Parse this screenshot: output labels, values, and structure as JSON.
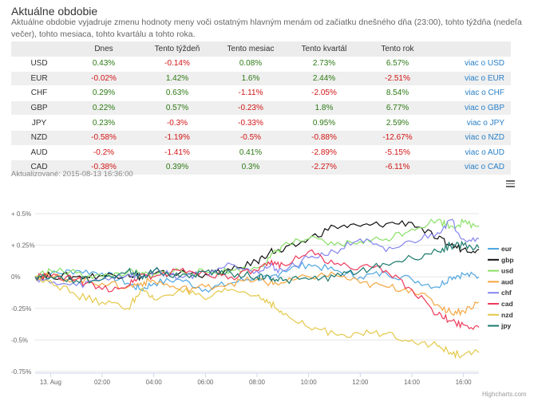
{
  "header": {
    "title": "Aktuálne obdobie",
    "description": "Aktuálne obdobie vyjadruje zmenu hodnoty meny voči ostatným hlavným menám od začiatku dnešného dňa (23:00), tohto týždňa (nedeľa večer), tohto mesiaca, tohto kvartálu a tohto roka."
  },
  "table": {
    "columns": [
      "",
      "Dnes",
      "Tento týždeň",
      "Tento mesiac",
      "Tento kvartál",
      "Tento rok",
      ""
    ],
    "rows": [
      {
        "currency": "USD",
        "values": [
          "0.43%",
          "-0.14%",
          "0.08%",
          "2.73%",
          "6.57%"
        ],
        "link": "viac o USD"
      },
      {
        "currency": "EUR",
        "values": [
          "-0.02%",
          "1.42%",
          "1.6%",
          "2.44%",
          "-2.51%"
        ],
        "link": "viac o EUR"
      },
      {
        "currency": "CHF",
        "values": [
          "0.29%",
          "0.63%",
          "-1.11%",
          "-2.05%",
          "8.54%"
        ],
        "link": "viac o CHF"
      },
      {
        "currency": "GBP",
        "values": [
          "0.22%",
          "0.57%",
          "-0.23%",
          "1.8%",
          "6.77%"
        ],
        "link": "viac o GBP"
      },
      {
        "currency": "JPY",
        "values": [
          "0.23%",
          "-0.3%",
          "-0.33%",
          "0.95%",
          "2.59%"
        ],
        "link": "viac o JPY"
      },
      {
        "currency": "NZD",
        "values": [
          "-0.58%",
          "-1.19%",
          "-0.5%",
          "-0.88%",
          "-12.67%"
        ],
        "link": "viac o NZD"
      },
      {
        "currency": "AUD",
        "values": [
          "-0.2%",
          "-1.41%",
          "0.41%",
          "-2.89%",
          "-5.15%"
        ],
        "link": "viac o AUD"
      },
      {
        "currency": "CAD",
        "values": [
          "-0.38%",
          "0.39%",
          "0.3%",
          "-2.27%",
          "-6.11%"
        ],
        "link": "viac o CAD"
      }
    ]
  },
  "updated": "Aktualizované: 2015-08-13 16:36:00",
  "credits": "Highcharts.com",
  "colors": {
    "positive": "#2c7a14",
    "negative": "#d21414",
    "link": "#2a80c8",
    "header_bg": "#ececec"
  },
  "chart_data": {
    "type": "line",
    "ylim": [
      -0.75,
      0.5
    ],
    "xlim": [
      -0.6,
      16.6
    ],
    "y_ticks": [
      {
        "value": 0.5,
        "label": "+ 0.5%"
      },
      {
        "value": 0.25,
        "label": "+ 0.25%"
      },
      {
        "value": 0,
        "label": "0%"
      },
      {
        "value": -0.25,
        "label": "-0.25%"
      },
      {
        "value": -0.5,
        "label": "-0.5%"
      },
      {
        "value": -0.75,
        "label": "-0.75%"
      }
    ],
    "x_ticks": [
      {
        "value": 0,
        "label": "13. Aug"
      },
      {
        "value": 2,
        "label": "02:00"
      },
      {
        "value": 4,
        "label": "04:00"
      },
      {
        "value": 6,
        "label": "06:00"
      },
      {
        "value": 8,
        "label": "08:00"
      },
      {
        "value": 10,
        "label": "10:00"
      },
      {
        "value": 12,
        "label": "12:00"
      },
      {
        "value": 14,
        "label": "14:00"
      },
      {
        "value": 16,
        "label": "16:00"
      }
    ],
    "x": [
      -0.6,
      0,
      1,
      2,
      3,
      3.5,
      4,
      5,
      6,
      7,
      8,
      8.5,
      9,
      10,
      11,
      12,
      13,
      14,
      15,
      15.5,
      16,
      16.6
    ],
    "series": [
      {
        "name": "eur",
        "color": "#4fa6e0",
        "values": [
          0.0,
          0.02,
          0.05,
          0.03,
          -0.05,
          -0.1,
          -0.05,
          -0.02,
          -0.1,
          -0.05,
          0.0,
          -0.02,
          0.05,
          0.1,
          0.05,
          0.0,
          0.03,
          -0.02,
          -0.08,
          0.0,
          0.02,
          0.0
        ]
      },
      {
        "name": "gbp",
        "color": "#111111",
        "values": [
          0.0,
          0.01,
          0.0,
          0.01,
          0.02,
          0.0,
          0.02,
          0.03,
          0.02,
          0.05,
          0.12,
          0.2,
          0.2,
          0.3,
          0.4,
          0.4,
          0.42,
          0.43,
          0.3,
          0.25,
          0.22,
          0.22
        ]
      },
      {
        "name": "usd",
        "color": "#8ae067",
        "values": [
          0.0,
          0.05,
          0.03,
          0.0,
          0.04,
          0.02,
          0.02,
          0.05,
          0.03,
          0.05,
          0.07,
          0.15,
          0.25,
          0.3,
          0.25,
          0.28,
          0.3,
          0.38,
          0.45,
          0.4,
          0.43,
          0.4
        ]
      },
      {
        "name": "aud",
        "color": "#f4a742",
        "values": [
          0.0,
          0.0,
          -0.02,
          -0.05,
          -0.08,
          -0.05,
          -0.03,
          -0.1,
          -0.08,
          -0.05,
          -0.02,
          -0.05,
          -0.05,
          0.0,
          0.02,
          -0.05,
          -0.08,
          -0.1,
          -0.22,
          -0.28,
          -0.27,
          -0.2
        ]
      },
      {
        "name": "chf",
        "color": "#8585f0",
        "values": [
          0.0,
          -0.05,
          -0.07,
          -0.02,
          0.02,
          0.0,
          0.05,
          0.0,
          0.03,
          0.1,
          0.05,
          0.08,
          0.05,
          0.15,
          0.2,
          0.3,
          0.2,
          0.28,
          0.35,
          0.45,
          0.3,
          0.3
        ]
      },
      {
        "name": "cad",
        "color": "#ee3a5c",
        "values": [
          0.0,
          0.0,
          -0.02,
          -0.1,
          -0.07,
          0.02,
          0.0,
          0.05,
          0.03,
          0.0,
          0.05,
          0.1,
          0.1,
          0.2,
          0.1,
          0.08,
          0.05,
          -0.1,
          -0.3,
          -0.35,
          -0.38,
          -0.4
        ]
      },
      {
        "name": "nzd",
        "color": "#e4c94a",
        "values": [
          0.0,
          -0.03,
          -0.15,
          -0.2,
          -0.25,
          -0.1,
          -0.18,
          -0.1,
          -0.18,
          -0.1,
          -0.15,
          -0.2,
          -0.3,
          -0.4,
          -0.45,
          -0.45,
          -0.45,
          -0.5,
          -0.55,
          -0.6,
          -0.62,
          -0.6
        ]
      },
      {
        "name": "jpy",
        "color": "#1b7a6e",
        "values": [
          0.0,
          0.0,
          -0.03,
          -0.02,
          0.05,
          0.0,
          0.05,
          0.0,
          0.04,
          0.03,
          0.0,
          0.0,
          -0.03,
          -0.02,
          0.0,
          0.05,
          0.1,
          0.15,
          0.2,
          0.25,
          0.25,
          0.23
        ]
      }
    ]
  }
}
